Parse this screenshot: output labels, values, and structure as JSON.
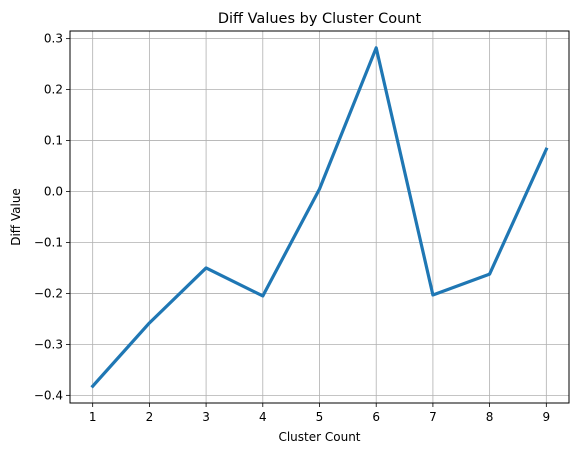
{
  "chart_data": {
    "type": "line",
    "title": "Diff Values by Cluster Count",
    "xlabel": "Cluster Count",
    "ylabel": "Diff Value",
    "x": [
      1,
      2,
      3,
      4,
      5,
      6,
      7,
      8,
      9
    ],
    "series": [
      {
        "values": [
          -0.382,
          -0.258,
          -0.15,
          -0.205,
          0.005,
          0.282,
          -0.203,
          -0.162,
          0.083
        ],
        "color": "#1f77b4"
      }
    ],
    "xlim": [
      0.6,
      9.4
    ],
    "ylim": [
      -0.415,
      0.315
    ],
    "xticks": [
      1,
      2,
      3,
      4,
      5,
      6,
      7,
      8,
      9
    ],
    "yticks": [
      -0.4,
      -0.3,
      -0.2,
      -0.1,
      0.0,
      0.1,
      0.2,
      0.3
    ],
    "ytick_labels": [
      "−0.4",
      "−0.3",
      "−0.2",
      "−0.1",
      "0.0",
      "0.1",
      "0.2",
      "0.3"
    ],
    "grid": true,
    "grid_color": "#b0b0b0"
  }
}
